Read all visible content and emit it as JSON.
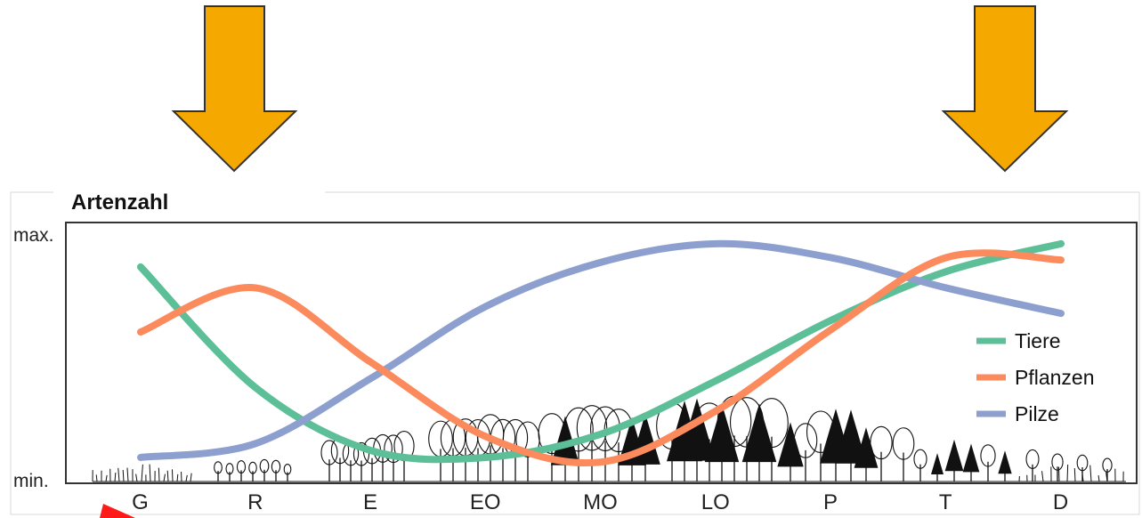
{
  "colors": {
    "arrow": "#F5A800",
    "arrow_stroke": "#333333",
    "tiere": "#5DBF98",
    "pflanzen": "#FB8A5C",
    "pilze": "#8D9FCE",
    "pointer": "#FF1A1A",
    "frame": "#333333",
    "vegetation": "#111111"
  },
  "icons": [
    "down-arrow-left",
    "down-arrow-right",
    "tree-silhouettes",
    "red-pointer-icon"
  ],
  "chart_data": {
    "type": "line",
    "title": "Artenzahl",
    "ylabel_top": "max.",
    "ylabel_bottom": "min.",
    "categories": [
      "G",
      "R",
      "E",
      "EO",
      "MO",
      "LO",
      "P",
      "T",
      "D"
    ],
    "ylim": [
      0,
      1
    ],
    "grid": false,
    "legend_position": "right",
    "series": [
      {
        "name": "Tiere",
        "color": "#5DBF98",
        "values": [
          0.87,
          0.35,
          0.08,
          0.05,
          0.15,
          0.38,
          0.64,
          0.85,
          0.97
        ]
      },
      {
        "name": "Pflanzen",
        "color": "#FB8A5C",
        "values": [
          0.59,
          0.78,
          0.46,
          0.14,
          0.03,
          0.25,
          0.6,
          0.91,
          0.9
        ]
      },
      {
        "name": "Pilze",
        "color": "#8D9FCE",
        "values": [
          0.05,
          0.11,
          0.39,
          0.7,
          0.89,
          0.97,
          0.91,
          0.78,
          0.67
        ]
      }
    ]
  }
}
